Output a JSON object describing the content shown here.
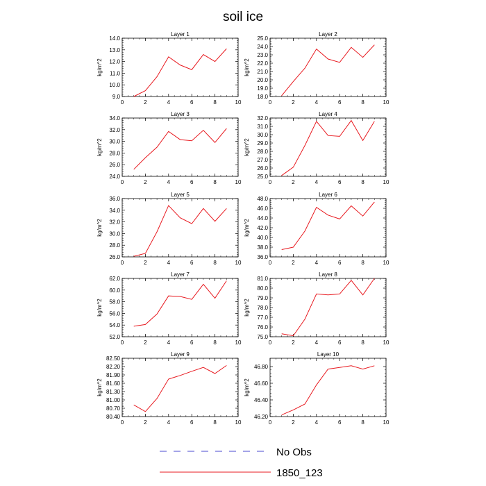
{
  "figure": {
    "title": "soil ice",
    "legend": [
      {
        "label": "No Obs",
        "color": "#4a4ad0",
        "style": "dashed"
      },
      {
        "label": "1850_123",
        "color": "#e8191f",
        "style": "solid"
      }
    ]
  },
  "chart_data": [
    {
      "type": "line",
      "title": "Layer 1",
      "xlabel": "",
      "ylabel": "kg/m^2",
      "xlim": [
        0,
        10
      ],
      "ylim": [
        9.0,
        14.0
      ],
      "xticks": [
        0,
        2,
        4,
        6,
        8,
        10
      ],
      "xtick_labels": [
        "0",
        "2",
        "4",
        "6",
        "8",
        "10"
      ],
      "yticks": [
        9,
        10,
        11,
        12,
        13,
        14
      ],
      "ytick_labels": [
        "9.0",
        "10.0",
        "11.0",
        "12.0",
        "13.0",
        "14.0"
      ],
      "series": [
        {
          "name": "1850_123",
          "color": "#e8191f",
          "x": [
            1,
            2,
            3,
            4,
            5,
            6,
            7,
            8,
            9
          ],
          "y": [
            9.0,
            9.5,
            10.7,
            12.4,
            11.7,
            11.3,
            12.6,
            12.0,
            13.1
          ]
        }
      ]
    },
    {
      "type": "line",
      "title": "Layer 2",
      "xlabel": "",
      "ylabel": "kg/m^2",
      "xlim": [
        0,
        10
      ],
      "ylim": [
        18.0,
        25.0
      ],
      "xticks": [
        0,
        2,
        4,
        6,
        8,
        10
      ],
      "xtick_labels": [
        "0",
        "2",
        "4",
        "6",
        "8",
        "10"
      ],
      "yticks": [
        18,
        19,
        20,
        21,
        22,
        23,
        24,
        25
      ],
      "ytick_labels": [
        "18.0",
        "19.0",
        "20.0",
        "21.0",
        "22.0",
        "23.0",
        "24.0",
        "25.0"
      ],
      "series": [
        {
          "name": "1850_123",
          "color": "#e8191f",
          "x": [
            1,
            2,
            3,
            4,
            5,
            6,
            7,
            8,
            9
          ],
          "y": [
            18.1,
            19.8,
            21.4,
            23.7,
            22.5,
            22.1,
            23.9,
            22.7,
            24.2
          ]
        }
      ]
    },
    {
      "type": "line",
      "title": "Layer 3",
      "xlabel": "",
      "ylabel": "kg/m^2",
      "xlim": [
        0,
        10
      ],
      "ylim": [
        24.0,
        34.0
      ],
      "xticks": [
        0,
        2,
        4,
        6,
        8,
        10
      ],
      "xtick_labels": [
        "0",
        "2",
        "4",
        "6",
        "8",
        "10"
      ],
      "yticks": [
        24,
        26,
        28,
        30,
        32,
        34
      ],
      "ytick_labels": [
        "24.0",
        "26.0",
        "28.0",
        "30.0",
        "32.0",
        "34.0"
      ],
      "series": [
        {
          "name": "1850_123",
          "color": "#e8191f",
          "x": [
            1,
            2,
            3,
            4,
            5,
            6,
            7,
            8,
            9
          ],
          "y": [
            25.2,
            27.2,
            29.0,
            31.7,
            30.3,
            30.1,
            31.9,
            29.8,
            32.2
          ]
        }
      ]
    },
    {
      "type": "line",
      "title": "Layer 4",
      "xlabel": "",
      "ylabel": "kg/m^2",
      "xlim": [
        0,
        10
      ],
      "ylim": [
        25.0,
        32.0
      ],
      "xticks": [
        0,
        2,
        4,
        6,
        8,
        10
      ],
      "xtick_labels": [
        "0",
        "2",
        "4",
        "6",
        "8",
        "10"
      ],
      "yticks": [
        25,
        26,
        27,
        28,
        29,
        30,
        31,
        32
      ],
      "ytick_labels": [
        "25.0",
        "26.0",
        "27.0",
        "28.0",
        "29.0",
        "30.0",
        "31.0",
        "32.0"
      ],
      "series": [
        {
          "name": "1850_123",
          "color": "#e8191f",
          "x": [
            1,
            2,
            3,
            4,
            5,
            6,
            7,
            8,
            9
          ],
          "y": [
            25.1,
            26.1,
            28.7,
            31.6,
            29.9,
            29.8,
            31.7,
            29.3,
            31.6
          ]
        }
      ]
    },
    {
      "type": "line",
      "title": "Layer 5",
      "xlabel": "",
      "ylabel": "kg/m^2",
      "xlim": [
        0,
        10
      ],
      "ylim": [
        26.0,
        36.0
      ],
      "xticks": [
        0,
        2,
        4,
        6,
        8,
        10
      ],
      "xtick_labels": [
        "0",
        "2",
        "4",
        "6",
        "8",
        "10"
      ],
      "yticks": [
        26,
        28,
        30,
        32,
        34,
        36
      ],
      "ytick_labels": [
        "26.0",
        "28.0",
        "30.0",
        "32.0",
        "34.0",
        "36.0"
      ],
      "series": [
        {
          "name": "1850_123",
          "color": "#e8191f",
          "x": [
            1,
            2,
            3,
            4,
            5,
            6,
            7,
            8,
            9
          ],
          "y": [
            26.1,
            26.6,
            30.3,
            34.8,
            32.7,
            31.7,
            34.3,
            32.1,
            34.3
          ]
        }
      ]
    },
    {
      "type": "line",
      "title": "Layer 6",
      "xlabel": "",
      "ylabel": "kg/m^2",
      "xlim": [
        0,
        10
      ],
      "ylim": [
        36.0,
        48.0
      ],
      "xticks": [
        0,
        2,
        4,
        6,
        8,
        10
      ],
      "xtick_labels": [
        "0",
        "2",
        "4",
        "6",
        "8",
        "10"
      ],
      "yticks": [
        36,
        38,
        40,
        42,
        44,
        46,
        48
      ],
      "ytick_labels": [
        "36.0",
        "38.0",
        "40.0",
        "42.0",
        "44.0",
        "46.0",
        "48.0"
      ],
      "series": [
        {
          "name": "1850_123",
          "color": "#e8191f",
          "x": [
            1,
            2,
            3,
            4,
            5,
            6,
            7,
            8,
            9
          ],
          "y": [
            37.5,
            38.0,
            41.3,
            46.2,
            44.6,
            43.8,
            46.5,
            44.4,
            47.3
          ]
        }
      ]
    },
    {
      "type": "line",
      "title": "Layer 7",
      "xlabel": "",
      "ylabel": "kg/m^2",
      "xlim": [
        0,
        10
      ],
      "ylim": [
        52.0,
        62.0
      ],
      "xticks": [
        0,
        2,
        4,
        6,
        8,
        10
      ],
      "xtick_labels": [
        "0",
        "2",
        "4",
        "6",
        "8",
        "10"
      ],
      "yticks": [
        52,
        54,
        56,
        58,
        60,
        62
      ],
      "ytick_labels": [
        "52.0",
        "54.0",
        "56.0",
        "58.0",
        "60.0",
        "62.0"
      ],
      "series": [
        {
          "name": "1850_123",
          "color": "#e8191f",
          "x": [
            1,
            2,
            3,
            4,
            5,
            6,
            7,
            8,
            9
          ],
          "y": [
            53.8,
            54.1,
            55.9,
            59.0,
            58.9,
            58.4,
            61.0,
            58.6,
            61.6
          ]
        }
      ]
    },
    {
      "type": "line",
      "title": "Layer 8",
      "xlabel": "",
      "ylabel": "kg/m^2",
      "xlim": [
        0,
        10
      ],
      "ylim": [
        75.0,
        81.0
      ],
      "xticks": [
        0,
        2,
        4,
        6,
        8,
        10
      ],
      "xtick_labels": [
        "0",
        "2",
        "4",
        "6",
        "8",
        "10"
      ],
      "yticks": [
        75,
        76,
        77,
        78,
        79,
        80,
        81
      ],
      "ytick_labels": [
        "75.0",
        "76.0",
        "77.0",
        "78.0",
        "79.0",
        "80.0",
        "81.0"
      ],
      "series": [
        {
          "name": "1850_123",
          "color": "#e8191f",
          "x": [
            1,
            2,
            3,
            4,
            5,
            6,
            7,
            8,
            9
          ],
          "y": [
            75.3,
            75.1,
            76.8,
            79.4,
            79.3,
            79.4,
            80.8,
            79.3,
            81.0
          ]
        }
      ]
    },
    {
      "type": "line",
      "title": "Layer 9",
      "xlabel": "",
      "ylabel": "kg/m^2",
      "xlim": [
        0,
        10
      ],
      "ylim": [
        80.4,
        82.5
      ],
      "xticks": [
        0,
        2,
        4,
        6,
        8,
        10
      ],
      "xtick_labels": [
        "0",
        "2",
        "4",
        "6",
        "8",
        "10"
      ],
      "yticks": [
        80.4,
        80.7,
        81.0,
        81.3,
        81.6,
        81.9,
        82.2,
        82.5
      ],
      "ytick_labels": [
        "80.40",
        "80.70",
        "81.00",
        "81.30",
        "81.60",
        "81.90",
        "82.20",
        "82.50"
      ],
      "series": [
        {
          "name": "1850_123",
          "color": "#e8191f",
          "x": [
            1,
            2,
            3,
            4,
            5,
            6,
            7,
            8,
            9
          ],
          "y": [
            80.82,
            80.58,
            81.05,
            81.75,
            81.88,
            82.03,
            82.17,
            81.95,
            82.24
          ]
        }
      ]
    },
    {
      "type": "line",
      "title": "Layer 10",
      "xlabel": "",
      "ylabel": "kg/m^2",
      "xlim": [
        0,
        10
      ],
      "ylim": [
        46.2,
        46.9
      ],
      "xticks": [
        0,
        2,
        4,
        6,
        8,
        10
      ],
      "xtick_labels": [
        "0",
        "2",
        "4",
        "6",
        "8",
        "10"
      ],
      "yticks": [
        46.2,
        46.4,
        46.6,
        46.8
      ],
      "ytick_labels": [
        "46.20",
        "46.40",
        "46.60",
        "46.80"
      ],
      "series": [
        {
          "name": "1850_123",
          "color": "#e8191f",
          "x": [
            1,
            2,
            3,
            4,
            5,
            6,
            7,
            8,
            9
          ],
          "y": [
            46.22,
            46.28,
            46.35,
            46.58,
            46.77,
            46.79,
            46.81,
            46.77,
            46.81
          ]
        }
      ]
    }
  ]
}
